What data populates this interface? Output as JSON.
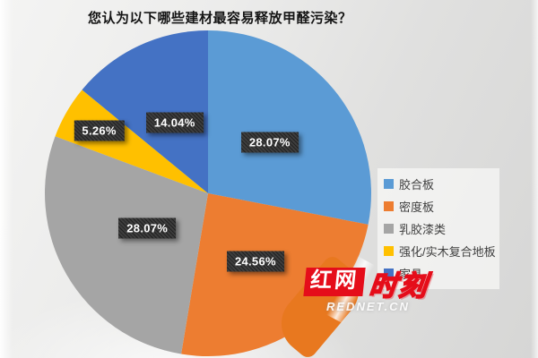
{
  "title": "您认为以下哪些建材最容易释放甲醛污染？",
  "chart_data": {
    "type": "pie",
    "title": "您认为以下哪些建材最容易释放甲醛污染？",
    "categories": [
      "胶合板",
      "密度板",
      "乳胶漆类",
      "强化/实木复合地板",
      "家具"
    ],
    "values": [
      28.07,
      24.56,
      28.07,
      5.26,
      14.04
    ],
    "unit": "%",
    "value_labels": [
      "28.07%",
      "24.56%",
      "28.07%",
      "5.26%",
      "14.04%"
    ],
    "colors": [
      "#5B9BD5",
      "#ED7D31",
      "#A5A5A5",
      "#FFC000",
      "#4472C4"
    ],
    "start_angle_deg": 0,
    "direction": "clockwise",
    "legend_position": "right",
    "label_style": "dark-box-white-text",
    "label_radius_factors": [
      0.49,
      0.51,
      0.43,
      0.77,
      0.48
    ]
  },
  "watermark": {
    "brand_block_text": "红网",
    "brand_outline_text": "时刻",
    "site_url": "REDNET.CN",
    "red": "#E50D1A",
    "orange": "#E8781F"
  }
}
